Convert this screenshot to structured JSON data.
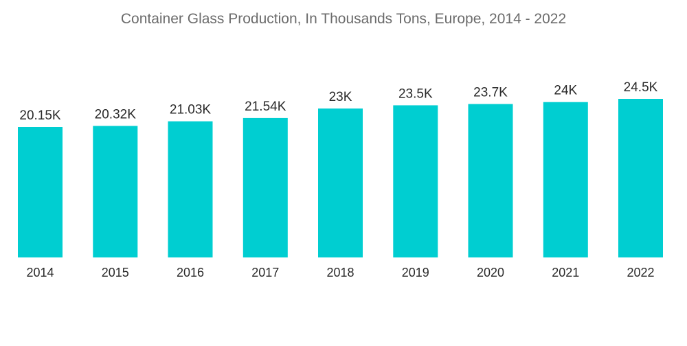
{
  "chart_data": {
    "type": "bar",
    "title": "Container Glass Production, In Thousands Tons, Europe, 2014 - 2022",
    "xlabel": "",
    "ylabel": "",
    "categories": [
      "2014",
      "2015",
      "2016",
      "2017",
      "2018",
      "2019",
      "2020",
      "2021",
      "2022"
    ],
    "values": [
      20.15,
      20.32,
      21.03,
      21.54,
      23,
      23.5,
      23.7,
      24,
      24.5
    ],
    "value_labels": [
      "20.15K",
      "20.32K",
      "21.03K",
      "21.54K",
      "23K",
      "23.5K",
      "23.7K",
      "24K",
      "24.5K"
    ],
    "ylim": [
      0,
      24.5
    ],
    "grid": false,
    "legend": "none",
    "colors": {
      "bar": "#00ced1"
    }
  }
}
